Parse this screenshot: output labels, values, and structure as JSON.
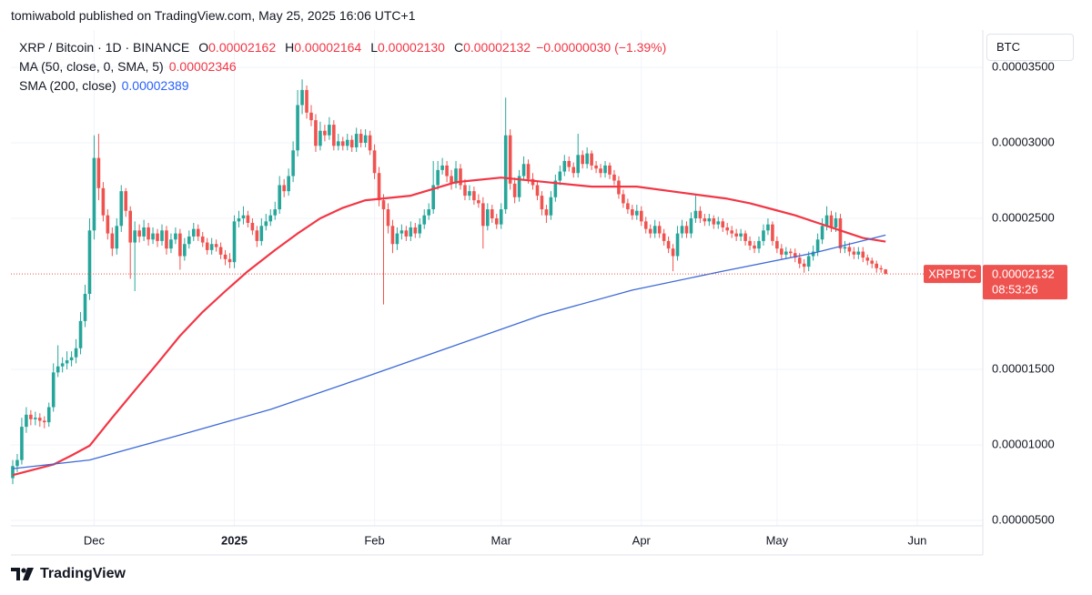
{
  "header": "tomiwabold published on TradingView.com, May 25, 2025 16:06 UTC+1",
  "footer": "TradingView",
  "chart_data": {
    "type": "candlestick",
    "title": "XRP / Bitcoin · 1D · BINANCE",
    "ohlc": [
      {
        "key": "O",
        "value": "0.00002162"
      },
      {
        "key": "H",
        "value": "0.00002164"
      },
      {
        "key": "L",
        "value": "0.00002130"
      },
      {
        "key": "C",
        "value": "0.00002132"
      }
    ],
    "change": "−0.00000030 (−1.39%)",
    "currency": "BTC",
    "up_color": "#26a69a",
    "down_color": "#ef5350",
    "x": [
      0,
      1,
      2,
      3,
      4,
      5,
      6,
      7,
      8,
      9,
      10,
      11,
      12,
      13,
      14,
      15,
      16,
      17,
      18,
      19,
      20,
      21,
      22,
      23,
      24,
      25,
      26,
      27,
      28,
      29,
      30,
      31,
      32,
      33,
      34,
      35,
      36,
      37,
      38,
      39,
      40,
      41,
      42,
      43,
      44,
      45,
      46,
      47,
      48,
      49,
      50,
      51,
      52,
      53,
      54,
      55,
      56,
      57,
      58,
      59,
      60,
      61,
      62,
      63,
      64,
      65,
      66,
      67,
      68,
      69,
      70,
      71,
      72,
      73,
      74,
      75,
      76,
      77,
      78,
      79,
      80,
      81,
      82,
      83,
      84,
      85,
      86,
      87,
      88,
      89,
      90,
      91,
      92,
      93,
      94,
      95,
      96,
      97,
      98,
      99,
      100,
      101,
      102,
      103,
      104,
      105,
      106,
      107,
      108,
      109,
      110,
      111,
      112,
      113,
      114,
      115,
      116,
      117,
      118,
      119,
      120,
      121,
      122,
      123,
      124,
      125,
      126,
      127,
      128,
      129,
      130,
      131,
      132,
      133,
      134,
      135,
      136,
      137,
      138,
      139,
      140,
      141,
      142,
      143,
      144,
      145,
      146,
      147,
      148,
      149,
      150,
      151,
      152,
      153,
      154,
      155,
      156,
      157,
      158,
      159,
      160,
      161,
      162,
      163,
      164,
      165,
      166,
      167,
      168,
      169,
      170,
      171,
      172,
      173,
      174,
      175,
      176,
      177,
      178,
      179,
      180,
      181,
      182,
      183,
      184,
      185,
      186,
      187,
      188,
      189,
      190,
      191,
      192,
      193
    ],
    "open": [
      7.8e-06,
      8.6e-06,
      9e-06,
      1.12e-05,
      1.2e-05,
      1.17e-05,
      1.18e-05,
      1.16e-05,
      1.15e-05,
      1.25e-05,
      1.48e-05,
      1.52e-05,
      1.54e-05,
      1.56e-05,
      1.58e-05,
      1.64e-05,
      1.82e-05,
      2e-05,
      2.42e-05,
      2.9e-05,
      2.7e-05,
      2.52e-05,
      2.4e-05,
      2.3e-05,
      2.45e-05,
      2.68e-05,
      2.55e-05,
      2.34e-05,
      2.42e-05,
      2.38e-05,
      2.44e-05,
      2.36e-05,
      2.4e-05,
      2.35e-05,
      2.42e-05,
      2.3e-05,
      2.36e-05,
      2.4e-05,
      2.25e-05,
      2.33e-05,
      2.38e-05,
      2.43e-05,
      2.38e-05,
      2.34e-05,
      2.29e-05,
      2.33e-05,
      2.31e-05,
      2.26e-05,
      2.23e-05,
      2.21e-05,
      2.48e-05,
      2.5e-05,
      2.52e-05,
      2.47e-05,
      2.42e-05,
      2.35e-05,
      2.45e-05,
      2.48e-05,
      2.52e-05,
      2.56e-05,
      2.72e-05,
      2.68e-05,
      2.78e-05,
      2.95e-05,
      3.25e-05,
      3.35e-05,
      3.2e-05,
      3.15e-05,
      2.98e-05,
      3.08e-05,
      3.05e-05,
      3.12e-05,
      2.98e-05,
      3.01e-05,
      2.98e-05,
      3.02e-05,
      2.97e-05,
      3.06e-05,
      3e-05,
      3.05e-05,
      2.95e-05,
      2.8e-05,
      2.62e-05,
      2.56e-05,
      2.45e-05,
      2.33e-05,
      2.4e-05,
      2.42e-05,
      2.38e-05,
      2.44e-05,
      2.4e-05,
      2.46e-05,
      2.52e-05,
      2.56e-05,
      2.72e-05,
      2.82e-05,
      2.85e-05,
      2.78e-05,
      2.73e-05,
      2.83e-05,
      2.72e-05,
      2.65e-05,
      2.68e-05,
      2.62e-05,
      2.6e-05,
      2.45e-05,
      2.56e-05,
      2.5e-05,
      2.46e-05,
      2.56e-05,
      3.05e-05,
      2.73e-05,
      2.64e-05,
      2.78e-05,
      2.86e-05,
      2.76e-05,
      2.72e-05,
      2.65e-05,
      2.56e-05,
      2.52e-05,
      2.64e-05,
      2.75e-05,
      2.81e-05,
      2.88e-05,
      2.84e-05,
      2.8e-05,
      2.92e-05,
      2.86e-05,
      2.93e-05,
      2.85e-05,
      2.83e-05,
      2.8e-05,
      2.85e-05,
      2.79e-05,
      2.75e-05,
      2.66e-05,
      2.6e-05,
      2.56e-05,
      2.52e-05,
      2.55e-05,
      2.48e-05,
      2.43e-05,
      2.4e-05,
      2.45e-05,
      2.4e-05,
      2.35e-05,
      2.3e-05,
      2.25e-05,
      2.4e-05,
      2.45e-05,
      2.4e-05,
      2.5e-05,
      2.55e-05,
      2.5e-05,
      2.48e-05,
      2.5e-05,
      2.46e-05,
      2.48e-05,
      2.44e-05,
      2.42e-05,
      2.4e-05,
      2.38e-05,
      2.4e-05,
      2.35e-05,
      2.32e-05,
      2.3e-05,
      2.35e-05,
      2.42e-05,
      2.46e-05,
      2.35e-05,
      2.3e-05,
      2.26e-05,
      2.28e-05,
      2.27e-05,
      2.24e-05,
      2.2e-05,
      2.18e-05,
      2.25e-05,
      2.28e-05,
      2.36e-05,
      2.45e-05,
      2.52e-05,
      2.44e-05,
      2.5e-05,
      2.3e-05,
      2.31e-05,
      2.28e-05,
      2.26e-05,
      2.28e-05,
      2.24e-05,
      2.22e-05,
      2.2e-05,
      2.17e-05,
      2.162e-05
    ],
    "high": [
      9e-06,
      9.4e-06,
      1.18e-05,
      1.25e-05,
      1.23e-05,
      1.22e-05,
      1.21e-05,
      1.19e-05,
      1.28e-05,
      1.54e-05,
      1.66e-05,
      1.58e-05,
      1.62e-05,
      1.62e-05,
      1.7e-05,
      1.88e-05,
      2.06e-05,
      2.5e-05,
      3.05e-05,
      3.06e-05,
      2.74e-05,
      2.56e-05,
      2.44e-05,
      2.5e-05,
      2.72e-05,
      2.7e-05,
      2.58e-05,
      2.48e-05,
      2.46e-05,
      2.49e-05,
      2.47e-05,
      2.44e-05,
      2.43e-05,
      2.46e-05,
      2.45e-05,
      2.4e-05,
      2.44e-05,
      2.43e-05,
      2.37e-05,
      2.42e-05,
      2.47e-05,
      2.46e-05,
      2.41e-05,
      2.37e-05,
      2.37e-05,
      2.36e-05,
      2.34e-05,
      2.29e-05,
      2.27e-05,
      2.52e-05,
      2.55e-05,
      2.58e-05,
      2.55e-05,
      2.5e-05,
      2.45e-05,
      2.5e-05,
      2.53e-05,
      2.56e-05,
      2.61e-05,
      2.78e-05,
      2.76e-05,
      2.83e-05,
      3.01e-05,
      3.35e-05,
      3.42e-05,
      3.38e-05,
      3.25e-05,
      3.19e-05,
      3.14e-05,
      3.12e-05,
      3.17e-05,
      3.15e-05,
      3.06e-05,
      3.04e-05,
      3.06e-05,
      3.05e-05,
      3.1e-05,
      3.09e-05,
      3.09e-05,
      3.08e-05,
      2.99e-05,
      2.84e-05,
      2.66e-05,
      2.6e-05,
      2.49e-05,
      2.44e-05,
      2.46e-05,
      2.45e-05,
      2.48e-05,
      2.47e-05,
      2.5e-05,
      2.56e-05,
      2.6e-05,
      2.88e-05,
      2.88e-05,
      2.9e-05,
      2.88e-05,
      2.82e-05,
      2.88e-05,
      2.86e-05,
      2.76e-05,
      2.72e-05,
      2.71e-05,
      2.66e-05,
      2.64e-05,
      2.6e-05,
      2.59e-05,
      2.53e-05,
      2.6e-05,
      3.3e-05,
      3.09e-05,
      2.77e-05,
      2.82e-05,
      2.91e-05,
      2.89e-05,
      2.8e-05,
      2.75e-05,
      2.68e-05,
      2.59e-05,
      2.68e-05,
      2.79e-05,
      2.85e-05,
      2.92e-05,
      2.91e-05,
      2.87e-05,
      3.06e-05,
      2.95e-05,
      2.97e-05,
      2.95e-05,
      2.88e-05,
      2.86e-05,
      2.88e-05,
      2.87e-05,
      2.82e-05,
      2.78e-05,
      2.69e-05,
      2.63e-05,
      2.59e-05,
      2.59e-05,
      2.58e-05,
      2.51e-05,
      2.46e-05,
      2.49e-05,
      2.48e-05,
      2.43e-05,
      2.38e-05,
      2.33e-05,
      2.45e-05,
      2.49e-05,
      2.48e-05,
      2.54e-05,
      2.65e-05,
      2.58e-05,
      2.53e-05,
      2.53e-05,
      2.52e-05,
      2.51e-05,
      2.5e-05,
      2.47e-05,
      2.45e-05,
      2.43e-05,
      2.43e-05,
      2.42e-05,
      2.38e-05,
      2.35e-05,
      2.38e-05,
      2.46e-05,
      2.5e-05,
      2.48e-05,
      2.38e-05,
      2.33e-05,
      2.31e-05,
      2.3e-05,
      2.3e-05,
      2.27e-05,
      2.23e-05,
      2.28e-05,
      2.32e-05,
      2.4e-05,
      2.5e-05,
      2.58e-05,
      2.55e-05,
      2.54e-05,
      2.53e-05,
      2.35e-05,
      2.34e-05,
      2.31e-05,
      2.31e-05,
      2.31e-05,
      2.26e-05,
      2.24e-05,
      2.22e-05,
      2.19e-05,
      2.164e-05
    ],
    "low": [
      7.4e-06,
      8.2e-06,
      8.7e-06,
      1.08e-05,
      1.13e-05,
      1.13e-05,
      1.12e-05,
      1.11e-05,
      1.12e-05,
      1.22e-05,
      1.45e-05,
      1.48e-05,
      1.5e-05,
      1.52e-05,
      1.54e-05,
      1.6e-05,
      1.78e-05,
      1.96e-05,
      2.36e-05,
      2.62e-05,
      2.48e-05,
      2.36e-05,
      2.25e-05,
      2.26e-05,
      2.41e-05,
      2.51e-05,
      2.1e-05,
      2.018e-05,
      2.34e-05,
      2.35e-05,
      2.32e-05,
      2.33e-05,
      2.31e-05,
      2.32e-05,
      2.26e-05,
      2.27e-05,
      2.33e-05,
      2.16e-05,
      2.22e-05,
      2.3e-05,
      2.35e-05,
      2.35e-05,
      2.31e-05,
      2.26e-05,
      2.26e-05,
      2.28e-05,
      2.23e-05,
      2.19e-05,
      2.17e-05,
      2.17e-05,
      2.44e-05,
      2.46e-05,
      2.44e-05,
      2.39e-05,
      2.31e-05,
      2.32e-05,
      2.42e-05,
      2.45e-05,
      2.49e-05,
      2.53e-05,
      2.64e-05,
      2.65e-05,
      2.74e-05,
      2.91e-05,
      3.19e-05,
      3.16e-05,
      3.11e-05,
      2.94e-05,
      2.95e-05,
      3.01e-05,
      3.02e-05,
      2.95e-05,
      2.95e-05,
      2.95e-05,
      2.95e-05,
      2.94e-05,
      2.94e-05,
      2.97e-05,
      2.97e-05,
      2.92e-05,
      2.76e-05,
      2.58e-05,
      1.93e-05,
      2.4e-05,
      2.27e-05,
      2.29e-05,
      2.36e-05,
      2.35e-05,
      2.35e-05,
      2.37e-05,
      2.37e-05,
      2.43e-05,
      2.49e-05,
      2.53e-05,
      2.69e-05,
      2.79e-05,
      2.74e-05,
      2.69e-05,
      2.7e-05,
      2.69e-05,
      2.62e-05,
      2.62e-05,
      2.59e-05,
      2.57e-05,
      2.3e-05,
      2.42e-05,
      2.47e-05,
      2.43e-05,
      2.43e-05,
      2.53e-05,
      2.69e-05,
      2.6e-05,
      2.61e-05,
      2.75e-05,
      2.73e-05,
      2.69e-05,
      2.62e-05,
      2.52e-05,
      2.47e-05,
      2.49e-05,
      2.61e-05,
      2.72e-05,
      2.78e-05,
      2.81e-05,
      2.77e-05,
      2.77e-05,
      2.83e-05,
      2.83e-05,
      2.82e-05,
      2.8e-05,
      2.77e-05,
      2.77e-05,
      2.76e-05,
      2.72e-05,
      2.63e-05,
      2.57e-05,
      2.53e-05,
      2.49e-05,
      2.49e-05,
      2.45e-05,
      2.4e-05,
      2.37e-05,
      2.37e-05,
      2.37e-05,
      2.32e-05,
      2.27e-05,
      2.15e-05,
      2.22e-05,
      2.37e-05,
      2.37e-05,
      2.37e-05,
      2.47e-05,
      2.47e-05,
      2.45e-05,
      2.45e-05,
      2.43e-05,
      2.43e-05,
      2.41e-05,
      2.39e-05,
      2.37e-05,
      2.35e-05,
      2.35e-05,
      2.32e-05,
      2.29e-05,
      2.27e-05,
      2.27e-05,
      2.32e-05,
      2.39e-05,
      2.32e-05,
      2.27e-05,
      2.23e-05,
      2.23e-05,
      2.24e-05,
      2.21e-05,
      2.17e-05,
      2.14e-05,
      2.15e-05,
      2.22e-05,
      2.25e-05,
      2.33e-05,
      2.42e-05,
      2.41e-05,
      2.41e-05,
      2.27e-05,
      2.27e-05,
      2.25e-05,
      2.23e-05,
      2.23e-05,
      2.21e-05,
      2.19e-05,
      2.17e-05,
      2.14e-05,
      2.14e-05,
      2.13e-05
    ],
    "close": [
      8.6e-06,
      9e-06,
      1.12e-05,
      1.2e-05,
      1.17e-05,
      1.18e-05,
      1.16e-05,
      1.15e-05,
      1.25e-05,
      1.48e-05,
      1.52e-05,
      1.54e-05,
      1.56e-05,
      1.58e-05,
      1.64e-05,
      1.82e-05,
      2e-05,
      2.42e-05,
      2.9e-05,
      2.7e-05,
      2.52e-05,
      2.4e-05,
      2.3e-05,
      2.45e-05,
      2.68e-05,
      2.55e-05,
      2.34e-05,
      2.42e-05,
      2.38e-05,
      2.44e-05,
      2.36e-05,
      2.4e-05,
      2.35e-05,
      2.42e-05,
      2.3e-05,
      2.36e-05,
      2.4e-05,
      2.25e-05,
      2.33e-05,
      2.38e-05,
      2.43e-05,
      2.38e-05,
      2.34e-05,
      2.29e-05,
      2.33e-05,
      2.31e-05,
      2.26e-05,
      2.23e-05,
      2.21e-05,
      2.48e-05,
      2.5e-05,
      2.52e-05,
      2.47e-05,
      2.42e-05,
      2.35e-05,
      2.45e-05,
      2.48e-05,
      2.52e-05,
      2.56e-05,
      2.72e-05,
      2.68e-05,
      2.78e-05,
      2.95e-05,
      3.25e-05,
      3.35e-05,
      3.2e-05,
      3.15e-05,
      2.98e-05,
      3.08e-05,
      3.05e-05,
      3.12e-05,
      2.98e-05,
      3.01e-05,
      2.98e-05,
      3.02e-05,
      2.97e-05,
      3.06e-05,
      3e-05,
      3.05e-05,
      2.95e-05,
      2.8e-05,
      2.62e-05,
      2.56e-05,
      2.45e-05,
      2.33e-05,
      2.4e-05,
      2.42e-05,
      2.38e-05,
      2.44e-05,
      2.4e-05,
      2.46e-05,
      2.52e-05,
      2.56e-05,
      2.72e-05,
      2.82e-05,
      2.85e-05,
      2.78e-05,
      2.73e-05,
      2.83e-05,
      2.72e-05,
      2.65e-05,
      2.68e-05,
      2.62e-05,
      2.6e-05,
      2.45e-05,
      2.56e-05,
      2.5e-05,
      2.46e-05,
      2.56e-05,
      3.05e-05,
      2.73e-05,
      2.64e-05,
      2.78e-05,
      2.86e-05,
      2.76e-05,
      2.72e-05,
      2.65e-05,
      2.56e-05,
      2.52e-05,
      2.64e-05,
      2.75e-05,
      2.81e-05,
      2.88e-05,
      2.84e-05,
      2.8e-05,
      2.92e-05,
      2.86e-05,
      2.93e-05,
      2.85e-05,
      2.83e-05,
      2.8e-05,
      2.85e-05,
      2.79e-05,
      2.75e-05,
      2.66e-05,
      2.6e-05,
      2.56e-05,
      2.52e-05,
      2.55e-05,
      2.48e-05,
      2.43e-05,
      2.4e-05,
      2.45e-05,
      2.4e-05,
      2.35e-05,
      2.3e-05,
      2.25e-05,
      2.4e-05,
      2.45e-05,
      2.4e-05,
      2.5e-05,
      2.55e-05,
      2.5e-05,
      2.48e-05,
      2.5e-05,
      2.46e-05,
      2.48e-05,
      2.44e-05,
      2.42e-05,
      2.4e-05,
      2.38e-05,
      2.4e-05,
      2.35e-05,
      2.32e-05,
      2.3e-05,
      2.35e-05,
      2.42e-05,
      2.46e-05,
      2.35e-05,
      2.3e-05,
      2.26e-05,
      2.28e-05,
      2.27e-05,
      2.24e-05,
      2.2e-05,
      2.18e-05,
      2.25e-05,
      2.28e-05,
      2.36e-05,
      2.45e-05,
      2.52e-05,
      2.44e-05,
      2.5e-05,
      2.3e-05,
      2.31e-05,
      2.28e-05,
      2.26e-05,
      2.28e-05,
      2.24e-05,
      2.22e-05,
      2.2e-05,
      2.17e-05,
      2.162e-05,
      2.132e-05
    ],
    "lines": [
      {
        "name": "MA (50, close, 0, SMA, 5)",
        "value_label": "0.00002346",
        "color": "#f23645",
        "width": 2.2,
        "x": [
          0,
          9,
          13,
          17,
          22,
          27,
          32,
          37,
          42,
          47,
          52,
          58,
          63,
          68,
          73,
          78,
          88,
          98,
          108,
          118,
          128,
          138,
          148,
          158,
          163,
          168,
          173,
          178,
          183,
          188,
          193
        ],
        "values": [
          8e-06,
          8.7e-06,
          9.3e-06,
          9.95e-06,
          1.18e-05,
          1.361e-05,
          1.54e-05,
          1.723e-05,
          1.88e-05,
          2.018e-05,
          2.15e-05,
          2.29e-05,
          2.4e-05,
          2.5e-05,
          2.57e-05,
          2.62e-05,
          2.65e-05,
          2.74e-05,
          2.77e-05,
          2.74e-05,
          2.71e-05,
          2.71e-05,
          2.67e-05,
          2.63e-05,
          2.6e-05,
          2.56e-05,
          2.52e-05,
          2.47e-05,
          2.42e-05,
          2.37e-05,
          2.346e-05
        ]
      },
      {
        "name": "SMA (200, close)",
        "value_label": "0.00002389",
        "color": "#3d6ad6",
        "width": 1.3,
        "x": [
          0,
          17,
          37,
          57,
          77,
          97,
          117,
          137,
          157,
          177,
          193
        ],
        "values": [
          8.43e-06,
          9e-06,
          1.066e-05,
          1.235e-05,
          1.44e-05,
          1.65e-05,
          1.86e-05,
          2.025e-05,
          2.15e-05,
          2.27e-05,
          2.389e-05
        ]
      }
    ],
    "last_price": {
      "name": "XRPBTC",
      "value": 2.132e-05,
      "value_label": "0.00002132",
      "countdown": "08:53:26"
    },
    "xlim": [
      -0.4,
      214.5
    ],
    "xticks": [
      {
        "value": 18,
        "label": "Dec"
      },
      {
        "value": 49,
        "label": "2025"
      },
      {
        "value": 80,
        "label": "Feb"
      },
      {
        "value": 108,
        "label": "Mar"
      },
      {
        "value": 139,
        "label": "Apr"
      },
      {
        "value": 169,
        "label": "May"
      },
      {
        "value": 200,
        "label": "Jun"
      }
    ],
    "ylim": [
      4.64e-06,
      3.747e-05
    ],
    "yticks": [
      {
        "value": 5e-06,
        "label": "0.00000500"
      },
      {
        "value": 1e-05,
        "label": "0.00001000"
      },
      {
        "value": 1.5e-05,
        "label": "0.00001500"
      },
      {
        "value": 2.5e-05,
        "label": "0.00002500"
      },
      {
        "value": 3e-05,
        "label": "0.00003000"
      },
      {
        "value": 3.5e-05,
        "label": "0.00003500"
      }
    ],
    "grid": true
  }
}
